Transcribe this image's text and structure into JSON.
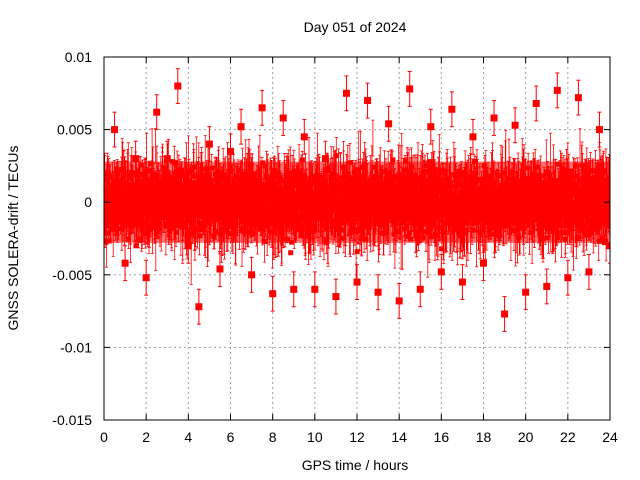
{
  "chart_data": {
    "type": "scatter",
    "title": "Day 051 of 2024",
    "xlabel": "GPS time / hours",
    "ylabel": "GNSS SOLERA-drift / TECUs",
    "xlim": [
      0,
      24
    ],
    "ylim": [
      -0.015,
      0.01
    ],
    "xticks": [
      0,
      2,
      4,
      6,
      8,
      10,
      12,
      14,
      16,
      18,
      20,
      22,
      24
    ],
    "yticks": [
      -0.015,
      -0.01,
      -0.005,
      0,
      0.005,
      0.01
    ],
    "xtick_labels": [
      "0",
      "2",
      "4",
      "6",
      "8",
      "10",
      "12",
      "14",
      "16",
      "18",
      "20",
      "22",
      "24"
    ],
    "ytick_labels": [
      "-0.015",
      "-0.01",
      "-0.005",
      "0",
      "0.005",
      "0.01"
    ],
    "grid": true,
    "marker": "square",
    "error_bars": true,
    "color": "#ff0000",
    "series": [
      {
        "x": [
          0.0,
          0.5,
          1.0,
          1.5,
          2.0,
          2.5,
          3.0,
          3.5,
          4.0,
          4.5,
          5.0,
          5.5,
          6.0,
          6.5,
          7.0,
          7.5,
          8.0,
          8.5,
          9.0,
          9.5,
          10.0,
          10.5,
          11.0,
          11.5,
          12.0,
          12.5,
          13.0,
          13.5,
          14.0,
          14.5,
          15.0,
          15.5,
          16.0,
          16.5,
          17.0,
          17.5,
          18.0,
          18.5,
          19.0,
          19.5,
          20.0,
          20.5,
          21.0,
          21.5,
          22.0,
          22.5,
          23.0,
          23.5,
          24.0
        ],
        "y": [
          0.002,
          0.005,
          -0.0042,
          0.003,
          -0.0052,
          0.0062,
          0.003,
          0.008,
          -0.003,
          -0.0072,
          0.004,
          -0.0046,
          0.0035,
          0.0052,
          -0.005,
          0.0065,
          -0.0063,
          0.0058,
          -0.006,
          0.0045,
          -0.006,
          0.003,
          -0.0065,
          0.0075,
          -0.0055,
          0.007,
          -0.0062,
          0.0054,
          -0.0068,
          0.0078,
          -0.006,
          0.0052,
          -0.0048,
          0.0064,
          -0.0055,
          0.0045,
          -0.0042,
          0.0058,
          -0.0077,
          0.0053,
          -0.0062,
          0.0068,
          -0.0058,
          0.0077,
          -0.0052,
          0.0072,
          -0.0048,
          0.005,
          -0.003
        ],
        "yerr": [
          0.0012,
          0.0012,
          0.0012,
          0.0012,
          0.0012,
          0.0012,
          0.0012,
          0.0012,
          0.0012,
          0.0012,
          0.0012,
          0.0012,
          0.0012,
          0.0012,
          0.0012,
          0.0012,
          0.0012,
          0.0012,
          0.0012,
          0.0012,
          0.0012,
          0.0012,
          0.0012,
          0.0012,
          0.0012,
          0.0012,
          0.0012,
          0.0012,
          0.0012,
          0.0012,
          0.0012,
          0.0012,
          0.0012,
          0.0012,
          0.0012,
          0.0012,
          0.0012,
          0.0012,
          0.0012,
          0.0012,
          0.0012,
          0.0012,
          0.0012,
          0.0012,
          0.0012,
          0.0012,
          0.0012,
          0.0012,
          0.0012
        ]
      }
    ]
  }
}
